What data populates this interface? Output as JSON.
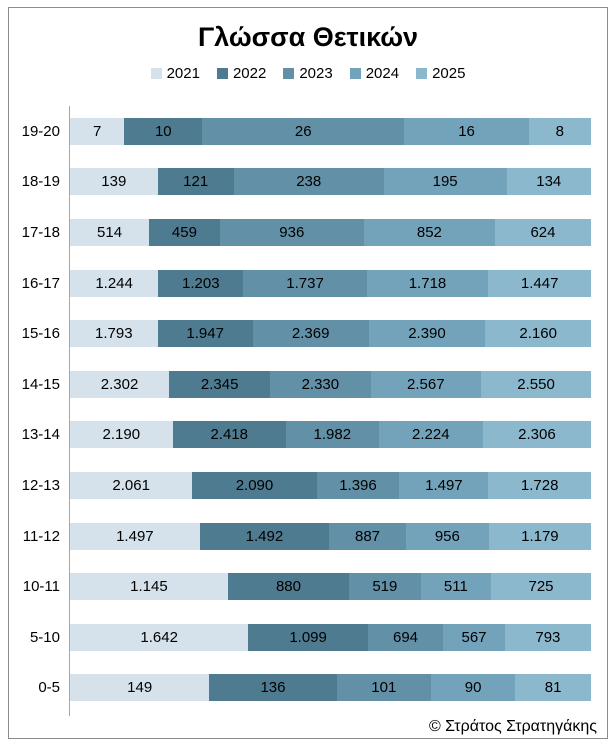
{
  "credit": "© Στράτος Στρατηγάκης",
  "colors": {
    "frame_border": "#8C8C8C",
    "axis_line": "#A6A6A6",
    "text": "#000000",
    "series": [
      "#D5E2EB",
      "#4F7B91",
      "#6290A7",
      "#73A3BB",
      "#8CB8CE"
    ]
  },
  "chart_data": {
    "type": "bar",
    "orientation": "horizontal",
    "stacking": "percent",
    "title": "Γλώσσα Θετικών",
    "legend_position": "top",
    "legend": [
      "2021",
      "2022",
      "2023",
      "2024",
      "2025"
    ],
    "categories": [
      "19-20",
      "18-19",
      "17-18",
      "16-17",
      "15-16",
      "14-15",
      "13-14",
      "12-13",
      "11-12",
      "10-11",
      "5-10",
      "0-5"
    ],
    "series": [
      {
        "name": "2021",
        "color": "#D5E2EB",
        "values": [
          7,
          139,
          514,
          1244,
          1793,
          2302,
          2190,
          2061,
          1497,
          1145,
          1642,
          149
        ],
        "labels": [
          "7",
          "139",
          "514",
          "1.244",
          "1.793",
          "2.302",
          "2.190",
          "2.061",
          "1.497",
          "1.145",
          "1.642",
          "149"
        ]
      },
      {
        "name": "2022",
        "color": "#4F7B91",
        "values": [
          10,
          121,
          459,
          1203,
          1947,
          2345,
          2418,
          2090,
          1492,
          880,
          1099,
          136
        ],
        "labels": [
          "10",
          "121",
          "459",
          "1.203",
          "1.947",
          "2.345",
          "2.418",
          "2.090",
          "1.492",
          "880",
          "1.099",
          "136"
        ]
      },
      {
        "name": "2023",
        "color": "#6290A7",
        "values": [
          26,
          238,
          936,
          1737,
          2369,
          2330,
          1982,
          1396,
          887,
          519,
          694,
          101
        ],
        "labels": [
          "26",
          "238",
          "936",
          "1.737",
          "2.369",
          "2.330",
          "1.982",
          "1.396",
          "887",
          "519",
          "694",
          "101"
        ]
      },
      {
        "name": "2024",
        "color": "#73A3BB",
        "values": [
          16,
          195,
          852,
          1718,
          2390,
          2567,
          2224,
          1497,
          956,
          511,
          567,
          90
        ],
        "labels": [
          "16",
          "195",
          "852",
          "1.718",
          "2.390",
          "2.567",
          "2.224",
          "1.497",
          "956",
          "511",
          "567",
          "90"
        ]
      },
      {
        "name": "2025",
        "color": "#8CB8CE",
        "values": [
          8,
          134,
          624,
          1447,
          2160,
          2550,
          2306,
          1728,
          1179,
          725,
          793,
          81
        ],
        "labels": [
          "8",
          "134",
          "624",
          "1.447",
          "2.160",
          "2.550",
          "2.306",
          "1.728",
          "1.179",
          "725",
          "793",
          "81"
        ]
      }
    ]
  }
}
